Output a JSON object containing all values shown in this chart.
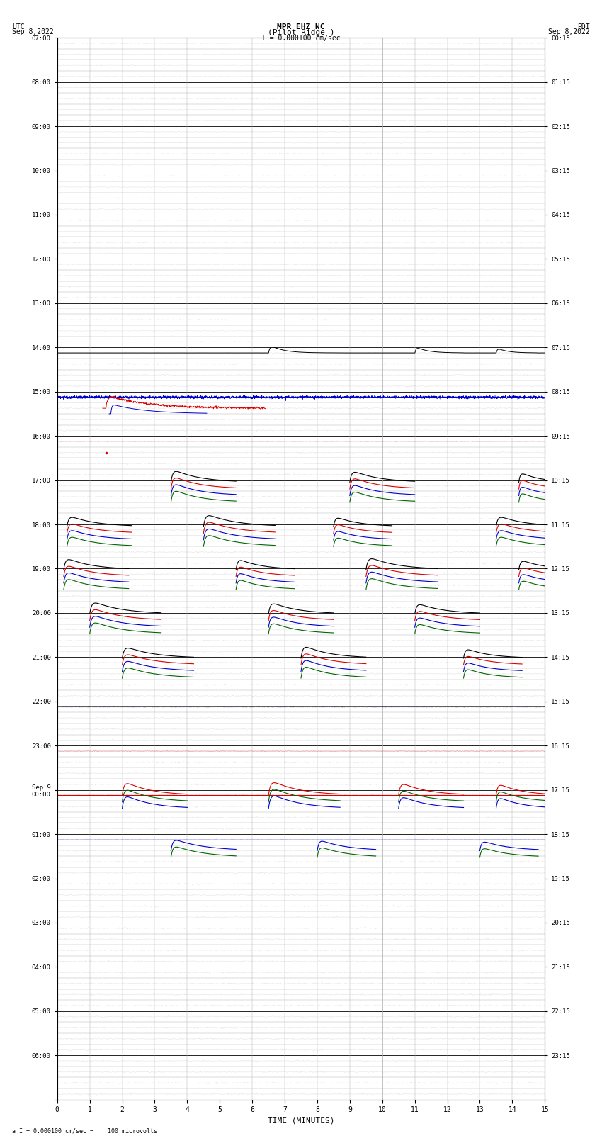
{
  "title_line1": "MPR EHZ NC",
  "title_line2": "(Pilot Ridge )",
  "scale_label": "I = 0.000100 cm/sec",
  "left_label_line1": "UTC",
  "left_label_line2": "Sep 8,2022",
  "right_label_line1": "PDT",
  "right_label_line2": "Sep 8,2022",
  "bottom_label": "a I = 0.000100 cm/sec =    100 microvolts",
  "xlabel": "TIME (MINUTES)",
  "utc_row_labels": [
    "07:00",
    "08:00",
    "09:00",
    "10:00",
    "11:00",
    "12:00",
    "13:00",
    "14:00",
    "15:00",
    "16:00",
    "17:00",
    "18:00",
    "19:00",
    "20:00",
    "21:00",
    "22:00",
    "23:00",
    "Sep 9\n00:00",
    "01:00",
    "02:00",
    "03:00",
    "04:00",
    "05:00",
    "06:00"
  ],
  "pdt_row_labels": [
    "00:15",
    "01:15",
    "02:15",
    "03:15",
    "04:15",
    "05:15",
    "06:15",
    "07:15",
    "08:15",
    "09:15",
    "10:15",
    "11:15",
    "12:15",
    "13:15",
    "14:15",
    "15:15",
    "16:15",
    "17:15",
    "18:15",
    "19:15",
    "20:15",
    "21:15",
    "22:15",
    "23:15"
  ],
  "n_rows": 24,
  "subrows_per_row": 4,
  "minutes_per_row": 15,
  "bg_color": "#ffffff",
  "major_grid_color": "#000000",
  "minor_grid_color": "#aaaaaa",
  "trace_color_black": "#000000",
  "trace_color_red": "#dd0000",
  "trace_color_blue": "#0000cc",
  "trace_color_green": "#006600"
}
